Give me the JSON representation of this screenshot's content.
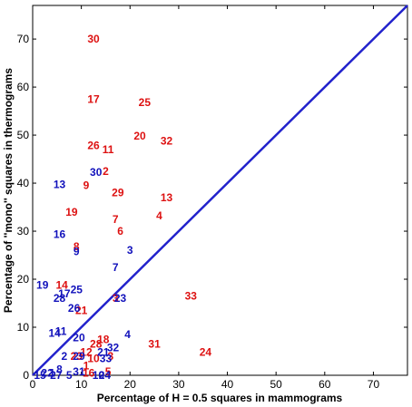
{
  "chart_data": {
    "type": "scatter",
    "title": "",
    "xlabel": "Percentage of H = 0.5 squares in mammograms",
    "ylabel": "Percentage of ''mono'' squares in thermograms",
    "xlim": [
      0,
      77
    ],
    "ylim": [
      0,
      77
    ],
    "xticks": [
      "0",
      "10",
      "20",
      "30",
      "40",
      "50",
      "60",
      "70"
    ],
    "yticks": [
      "0",
      "10",
      "20",
      "30",
      "40",
      "50",
      "60",
      "70"
    ],
    "grid": false,
    "legend": "none",
    "diagonal": {
      "x": [
        0,
        77
      ],
      "y": [
        0,
        77
      ],
      "color": "#2222cc"
    },
    "series": [
      {
        "color": "#dd1111",
        "points": [
          {
            "label": "30",
            "x": 12.5,
            "y": 70.0
          },
          {
            "label": "17",
            "x": 12.5,
            "y": 57.5
          },
          {
            "label": "25",
            "x": 23.0,
            "y": 56.8
          },
          {
            "label": "20",
            "x": 22.0,
            "y": 49.8
          },
          {
            "label": "32",
            "x": 27.5,
            "y": 48.8
          },
          {
            "label": "26",
            "x": 12.5,
            "y": 47.8
          },
          {
            "label": "11",
            "x": 15.5,
            "y": 47.0
          },
          {
            "label": "2",
            "x": 15.0,
            "y": 42.5
          },
          {
            "label": "9",
            "x": 11.0,
            "y": 39.5
          },
          {
            "label": "29",
            "x": 17.5,
            "y": 38.0
          },
          {
            "label": "13",
            "x": 27.5,
            "y": 37.0
          },
          {
            "label": "19",
            "x": 8.0,
            "y": 34.0
          },
          {
            "label": "7",
            "x": 17.0,
            "y": 32.5
          },
          {
            "label": "4",
            "x": 26.0,
            "y": 33.2
          },
          {
            "label": "6",
            "x": 18.0,
            "y": 30.0
          },
          {
            "label": "8",
            "x": 9.0,
            "y": 26.8
          },
          {
            "label": "14",
            "x": 6.0,
            "y": 18.8
          },
          {
            "label": "33",
            "x": 32.5,
            "y": 16.5
          },
          {
            "label": "21",
            "x": 10.0,
            "y": 13.5
          },
          {
            "label": "3",
            "x": 17.0,
            "y": 16.0
          },
          {
            "label": "18",
            "x": 14.5,
            "y": 7.5
          },
          {
            "label": "28",
            "x": 13.0,
            "y": 6.5
          },
          {
            "label": "31",
            "x": 25.0,
            "y": 6.5
          },
          {
            "label": "24",
            "x": 35.5,
            "y": 4.8
          },
          {
            "label": "12",
            "x": 11.0,
            "y": 4.8
          },
          {
            "label": "23",
            "x": 9.0,
            "y": 4.0
          },
          {
            "label": "10",
            "x": 12.5,
            "y": 3.5
          },
          {
            "label": "1",
            "x": 11.0,
            "y": 2.0
          },
          {
            "label": "5",
            "x": 15.5,
            "y": 0.8
          },
          {
            "label": "3",
            "x": 16.0,
            "y": 4.0
          },
          {
            "label": "16",
            "x": 11.5,
            "y": 0.5
          }
        ]
      },
      {
        "color": "#1111bb",
        "points": [
          {
            "label": "13",
            "x": 5.5,
            "y": 39.7
          },
          {
            "label": "30",
            "x": 13.0,
            "y": 42.3
          },
          {
            "label": "16",
            "x": 5.5,
            "y": 29.3
          },
          {
            "label": "9",
            "x": 9.0,
            "y": 25.8
          },
          {
            "label": "3",
            "x": 20.0,
            "y": 26.0
          },
          {
            "label": "7",
            "x": 17.0,
            "y": 22.5
          },
          {
            "label": "19",
            "x": 2.0,
            "y": 18.8
          },
          {
            "label": "25",
            "x": 9.0,
            "y": 17.8
          },
          {
            "label": "17",
            "x": 6.5,
            "y": 17.0
          },
          {
            "label": "28",
            "x": 5.5,
            "y": 16.0
          },
          {
            "label": "23",
            "x": 18.0,
            "y": 16.0
          },
          {
            "label": "26",
            "x": 8.5,
            "y": 14.0
          },
          {
            "label": "14",
            "x": 4.5,
            "y": 8.8
          },
          {
            "label": "11",
            "x": 5.8,
            "y": 9.2
          },
          {
            "label": "20",
            "x": 9.5,
            "y": 7.8
          },
          {
            "label": "4",
            "x": 19.5,
            "y": 8.5
          },
          {
            "label": "32",
            "x": 16.5,
            "y": 5.8
          },
          {
            "label": "29",
            "x": 9.5,
            "y": 4.0
          },
          {
            "label": "21",
            "x": 14.5,
            "y": 4.8
          },
          {
            "label": "33",
            "x": 15.0,
            "y": 3.5
          },
          {
            "label": "2",
            "x": 6.5,
            "y": 4.0
          },
          {
            "label": "31",
            "x": 9.5,
            "y": 0.8
          },
          {
            "label": "24",
            "x": 14.8,
            "y": 0.0
          },
          {
            "label": "5",
            "x": 7.5,
            "y": 0.0
          },
          {
            "label": "8",
            "x": 5.5,
            "y": 1.2
          },
          {
            "label": "1",
            "x": 4.0,
            "y": 0.5
          },
          {
            "label": "22",
            "x": 3.0,
            "y": 0.5
          },
          {
            "label": "15",
            "x": 1.5,
            "y": 0.0
          },
          {
            "label": "27",
            "x": 4.8,
            "y": 0.0
          },
          {
            "label": "10",
            "x": 13.5,
            "y": 0.0
          }
        ]
      }
    ]
  }
}
